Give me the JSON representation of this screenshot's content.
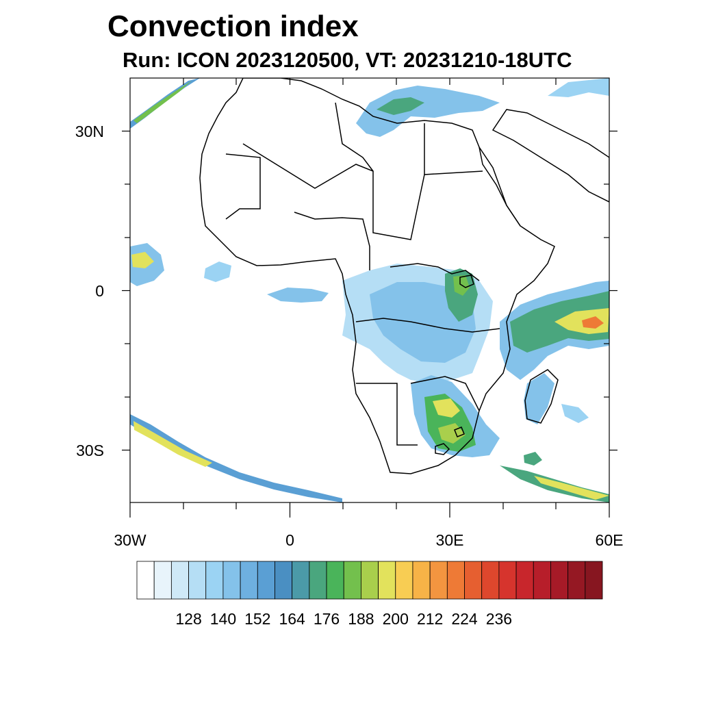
{
  "title": "Convection index",
  "subtitle": "Run: ICON 2023120500,  VT: 20231210-18UTC",
  "colors": {
    "levels": [
      "#ffffff",
      "#e8f4fb",
      "#cfe9f7",
      "#b5def5",
      "#9bd3f3",
      "#84c2ea",
      "#6eb0e0",
      "#5a9fd4",
      "#4a8fc2",
      "#4b9aa8",
      "#4aa67e",
      "#4ab45a",
      "#73c04d",
      "#a9cf4c",
      "#e2e25c",
      "#f8cd53",
      "#f7b347",
      "#f39540",
      "#ee7a36",
      "#e65f30",
      "#de472d",
      "#d6342d",
      "#c8262c",
      "#b71e2a",
      "#a61a27",
      "#951823",
      "#871620"
    ],
    "land_outline": "#000000"
  },
  "map": {
    "lat_labels": [
      "30N",
      "0",
      "30S"
    ],
    "lon_labels": [
      "30W",
      "0",
      "30E",
      "60E"
    ]
  },
  "colorbar": {
    "labels": [
      "128",
      "140",
      "152",
      "164",
      "176",
      "188",
      "200",
      "212",
      "224",
      "236"
    ]
  }
}
